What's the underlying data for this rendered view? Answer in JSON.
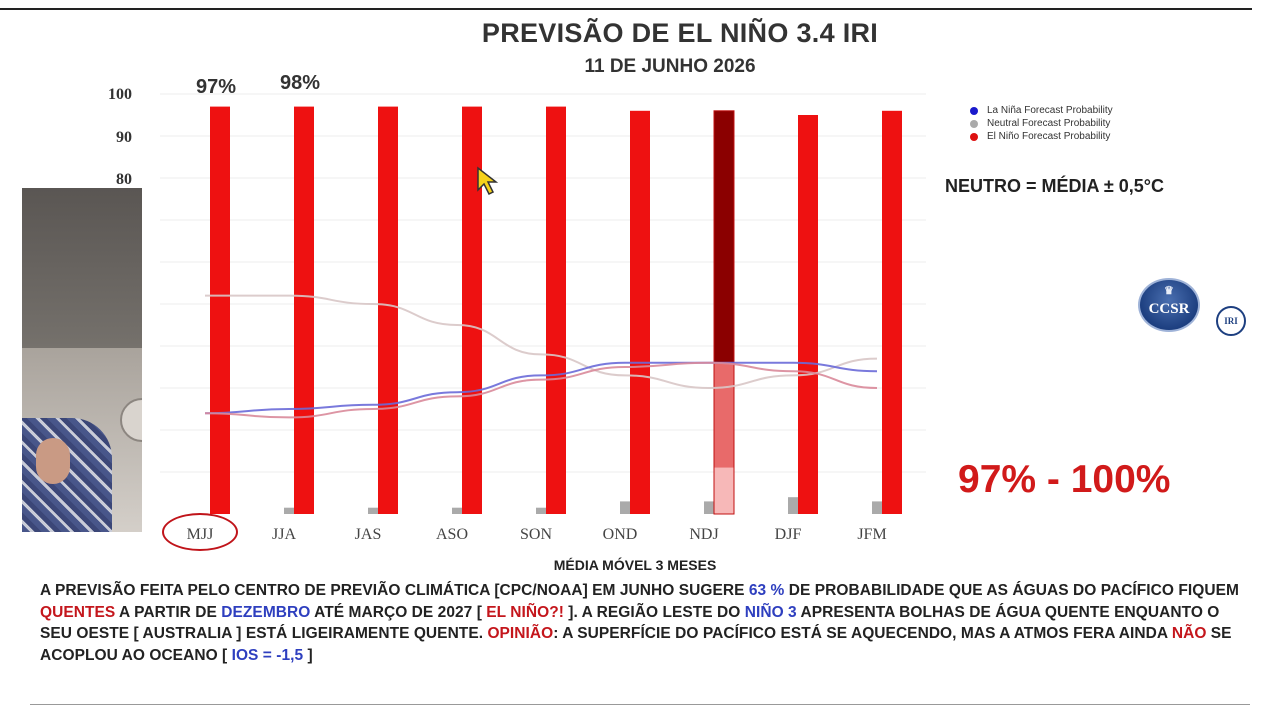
{
  "title": "PREVISÃO DE EL NIÑO 3.4 IRI",
  "subtitle": "11 DE JUNHO 2026",
  "y_ticks": [
    "100",
    "90",
    "80"
  ],
  "top_labels": [
    "97%",
    "98%"
  ],
  "legend": [
    {
      "label": "La Niña Forecast Probability",
      "color": "#1a1acc"
    },
    {
      "label": "Neutral Forecast Probability",
      "color": "#aaaaaa"
    },
    {
      "label": "El Niño Forecast Probability",
      "color": "#dd1111"
    }
  ],
  "note": "NEUTRO = MÉDIA ± 0,5°C",
  "logo": {
    "text": "CCSR",
    "badge": "IRI"
  },
  "range_text": "97% - 100%",
  "xlabel": "MÉDIA MÓVEL 3 MESES",
  "colors": {
    "el_nino": "#ee1111",
    "el_nino_dark": "#8b0000",
    "neutral": "#aaaaaa",
    "la_nina": "#3333cc",
    "accent_red": "#c4161c",
    "accent_blue": "#2e3fbf"
  },
  "chart_data": {
    "type": "bar",
    "categories": [
      "MJJ",
      "JJA",
      "JAS",
      "ASO",
      "SON",
      "OND",
      "NDJ",
      "DJF",
      "JFM"
    ],
    "ylim": [
      0,
      100
    ],
    "series": [
      {
        "name": "El Niño Forecast Probability",
        "values": [
          97,
          97,
          97,
          97,
          97,
          96,
          96,
          95,
          96
        ]
      },
      {
        "name": "Neutral Forecast Probability",
        "values": [
          0,
          1.5,
          1.5,
          1.5,
          1.5,
          3,
          3,
          4,
          3
        ]
      },
      {
        "name": "La Niña Forecast Probability",
        "values": [
          0,
          0,
          0,
          0,
          0,
          0,
          1,
          0,
          0
        ]
      }
    ],
    "overlay_lines": [
      {
        "color": "#d8c6c6",
        "values": [
          52,
          52,
          50,
          45,
          38,
          33,
          30,
          33,
          37
        ]
      },
      {
        "color": "#6a6ad8",
        "values": [
          24,
          25,
          26,
          29,
          33,
          36,
          36,
          36,
          34
        ]
      },
      {
        "color": "#d98a9a",
        "values": [
          24,
          23,
          25,
          28,
          32,
          35,
          36,
          34,
          30
        ]
      }
    ]
  },
  "paragraph": [
    {
      "text": "A PREVISÃO FEITA PELO CENTRO DE PREVIÃO CLIMÁTICA [CPC/NOAA] EM  JUNHO SUGERE ",
      "style": "plain"
    },
    {
      "text": "63 %",
      "style": "blue"
    },
    {
      "text": " DE PROBABILIDADE QUE AS ÁGUAS DO PACÍFICO FIQUEM ",
      "style": "plain"
    },
    {
      "text": "QUENTES",
      "style": "red"
    },
    {
      "text": " A PARTIR DE ",
      "style": "plain"
    },
    {
      "text": "DEZEMBRO",
      "style": "blue"
    },
    {
      "text": " ATÉ MARÇO DE 2027 [ ",
      "style": "plain"
    },
    {
      "text": "EL NIÑO?!",
      "style": "red"
    },
    {
      "text": " ].  A REGIÃO LESTE DO ",
      "style": "plain"
    },
    {
      "text": "NIÑO 3",
      "style": "blue"
    },
    {
      "text": " APRESENTA BOLHAS DE ÁGUA QUENTE  ENQUANTO O SEU OESTE [ AUSTRALIA ] ESTÁ LIGEIRAMENTE QUENTE. ",
      "style": "plain"
    },
    {
      "text": "OPINIÃO",
      "style": "red"
    },
    {
      "text": ": A SUPERFÍCIE DO PACÍFICO ESTÁ SE AQUECENDO, MAS A ATMOS FERA AINDA ",
      "style": "plain"
    },
    {
      "text": "NÃO",
      "style": "red"
    },
    {
      "text": " SE ACOPLOU AO OCEANO [ ",
      "style": "plain"
    },
    {
      "text": "IOS = -1,5",
      "style": "blue"
    },
    {
      "text": " ]",
      "style": "plain"
    }
  ]
}
